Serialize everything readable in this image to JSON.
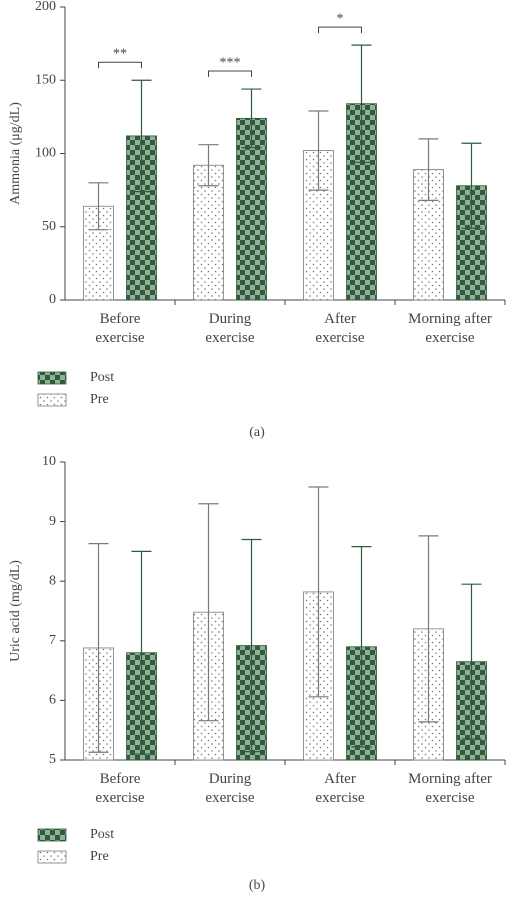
{
  "chart_data": [
    {
      "type": "bar",
      "y_label": "Ammonia (μg/dL)",
      "caption": "(a)",
      "categories": [
        "Before\nexercise",
        "During\nexercise",
        "After\nexercise",
        "Morning after\nexercise"
      ],
      "series": [
        {
          "name": "Pre",
          "color": "#7a7a7a",
          "pattern": "dots",
          "values": [
            64,
            92,
            102,
            89
          ],
          "errors": [
            16,
            14,
            27,
            21
          ]
        },
        {
          "name": "Post",
          "color": "#2d5c3a",
          "pattern": "checker",
          "values": [
            112,
            124,
            134,
            78
          ],
          "errors": [
            38,
            20,
            40,
            29
          ]
        }
      ],
      "significance": [
        "**",
        "***",
        "*",
        null
      ],
      "ylim": [
        0,
        200
      ],
      "yticks": [
        0,
        50,
        100,
        150,
        200
      ]
    },
    {
      "type": "bar",
      "y_label": "Uric acid (mg/dL)",
      "caption": "(b)",
      "categories": [
        "Before\nexercise",
        "During\nexercise",
        "After\nexercise",
        "Morning after\nexercise"
      ],
      "series": [
        {
          "name": "Pre",
          "color": "#7a7a7a",
          "pattern": "dots",
          "values": [
            6.88,
            7.48,
            7.82,
            7.2
          ],
          "errors": [
            1.75,
            1.82,
            1.76,
            1.56
          ]
        },
        {
          "name": "Post",
          "color": "#2d5c3a",
          "pattern": "checker",
          "values": [
            6.8,
            6.92,
            6.9,
            6.65
          ],
          "errors": [
            1.7,
            1.78,
            1.68,
            1.3
          ]
        }
      ],
      "ylim": [
        5,
        10
      ],
      "yticks": [
        5,
        6,
        7,
        8,
        9,
        10
      ]
    }
  ]
}
